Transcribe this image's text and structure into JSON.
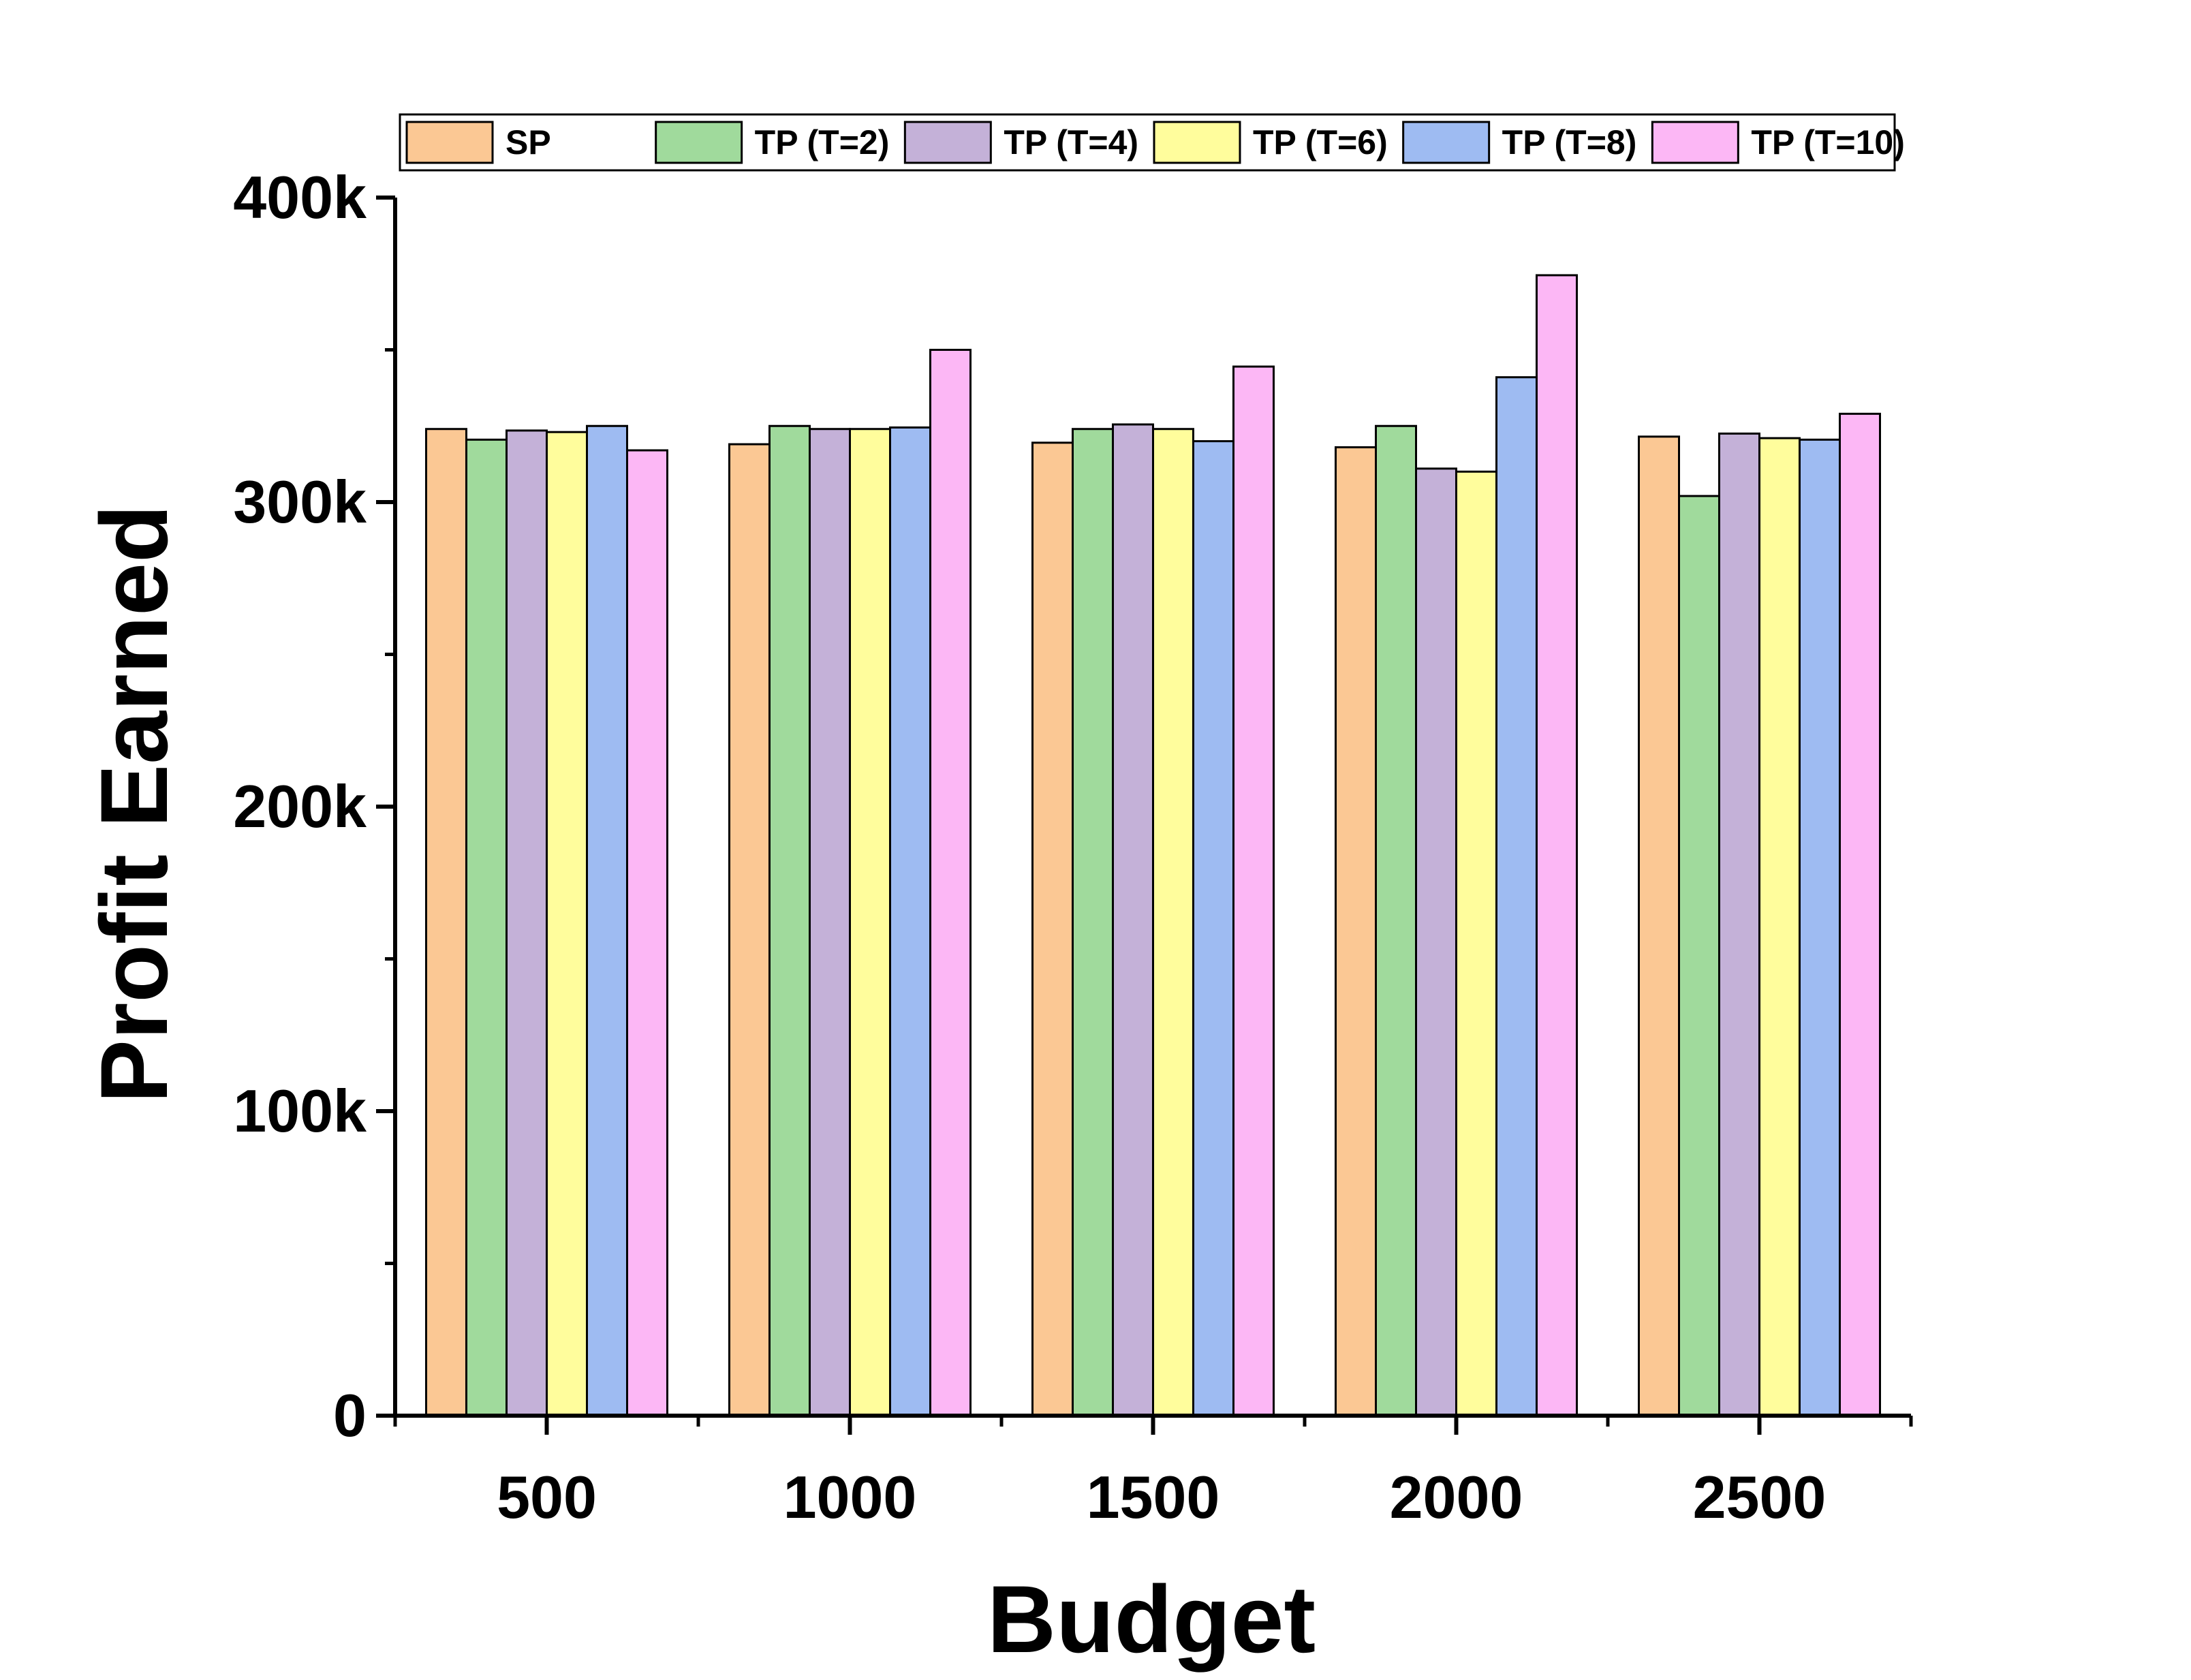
{
  "chart_data": {
    "type": "bar",
    "xlabel": "Budget",
    "ylabel": "Profit Earned",
    "categories": [
      "500",
      "1000",
      "1500",
      "2000",
      "2500"
    ],
    "ylim": [
      0,
      400000
    ],
    "y_ticks": [
      0,
      100000,
      200000,
      300000,
      400000
    ],
    "y_tick_labels": [
      "0",
      "100k",
      "200k",
      "300k",
      "400k"
    ],
    "grid": false,
    "legend_position": "top",
    "series": [
      {
        "name": "SP",
        "color": "#FBC894",
        "values": [
          324000,
          319000,
          319500,
          318000,
          321500
        ]
      },
      {
        "name": "TP (T=2)",
        "color": "#A0DA9C",
        "values": [
          320500,
          325000,
          324000,
          325000,
          302000
        ]
      },
      {
        "name": "TP (T=4)",
        "color": "#C4B1D8",
        "values": [
          323500,
          324000,
          325500,
          311000,
          322500
        ]
      },
      {
        "name": "TP (T=6)",
        "color": "#FFFD9C",
        "values": [
          323000,
          324000,
          324000,
          310000,
          321000
        ]
      },
      {
        "name": "TP (T=8)",
        "color": "#9EBBF2",
        "values": [
          325000,
          324500,
          320000,
          341000,
          320500
        ]
      },
      {
        "name": "TP (T=10)",
        "color": "#FCB7F5",
        "values": [
          317000,
          350000,
          344500,
          374500,
          329000
        ]
      }
    ]
  }
}
